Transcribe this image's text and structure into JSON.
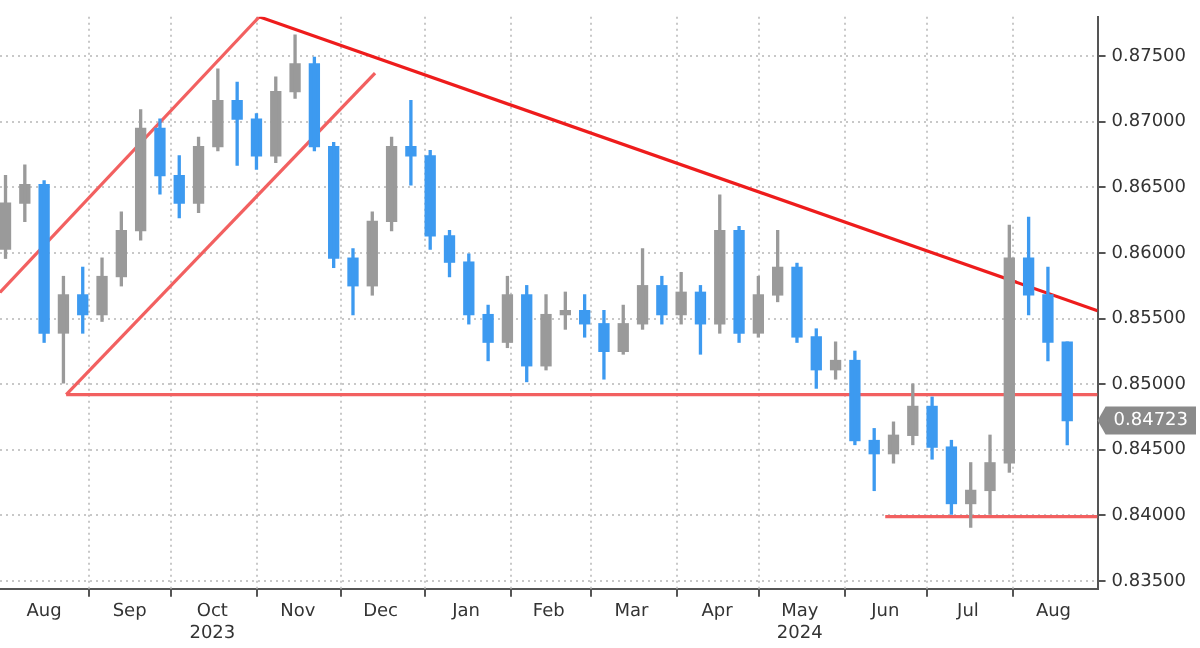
{
  "chart_data": {
    "type": "candlestick",
    "x": [
      "2023-08-02",
      "2023-08-09",
      "2023-08-16",
      "2023-08-23",
      "2023-08-30",
      "2023-09-06",
      "2023-09-13",
      "2023-09-20",
      "2023-09-27",
      "2023-10-04",
      "2023-10-11",
      "2023-10-18",
      "2023-10-25",
      "2023-11-01",
      "2023-11-08",
      "2023-11-15",
      "2023-11-22",
      "2023-11-29",
      "2023-12-06",
      "2023-12-13",
      "2023-12-20",
      "2023-12-27",
      "2024-01-03",
      "2024-01-10",
      "2024-01-17",
      "2024-01-24",
      "2024-01-31",
      "2024-02-07",
      "2024-02-14",
      "2024-02-21",
      "2024-02-28",
      "2024-03-06",
      "2024-03-13",
      "2024-03-20",
      "2024-03-27",
      "2024-04-03",
      "2024-04-10",
      "2024-04-17",
      "2024-04-24",
      "2024-05-01",
      "2024-05-08",
      "2024-05-15",
      "2024-05-22",
      "2024-05-29",
      "2024-06-05",
      "2024-06-12",
      "2024-06-19",
      "2024-06-26",
      "2024-07-03",
      "2024-07-10",
      "2024-07-17",
      "2024-07-24",
      "2024-07-31",
      "2024-08-07",
      "2024-08-14",
      "2024-08-21"
    ],
    "ohlc": [
      [
        0.8603,
        0.8659,
        0.8596,
        0.8638
      ],
      [
        0.8638,
        0.8667,
        0.8624,
        0.8652
      ],
      [
        0.8652,
        0.8655,
        0.8532,
        0.8539
      ],
      [
        0.8539,
        0.8582,
        0.8501,
        0.8568
      ],
      [
        0.8568,
        0.8589,
        0.8539,
        0.8553
      ],
      [
        0.8553,
        0.8596,
        0.8548,
        0.8582
      ],
      [
        0.8582,
        0.8631,
        0.8575,
        0.8617
      ],
      [
        0.8617,
        0.8709,
        0.861,
        0.8695
      ],
      [
        0.8695,
        0.8702,
        0.8645,
        0.8659
      ],
      [
        0.8659,
        0.8674,
        0.8627,
        0.8638
      ],
      [
        0.8638,
        0.8688,
        0.8631,
        0.8681
      ],
      [
        0.8681,
        0.874,
        0.8678,
        0.8716
      ],
      [
        0.8716,
        0.873,
        0.8667,
        0.8702
      ],
      [
        0.8702,
        0.8706,
        0.8664,
        0.8674
      ],
      [
        0.8674,
        0.8734,
        0.8669,
        0.8723
      ],
      [
        0.8723,
        0.8766,
        0.8718,
        0.8744
      ],
      [
        0.8744,
        0.8749,
        0.8678,
        0.8681
      ],
      [
        0.8681,
        0.8684,
        0.8589,
        0.8596
      ],
      [
        0.8596,
        0.8603,
        0.8553,
        0.8575
      ],
      [
        0.8575,
        0.8631,
        0.8568,
        0.8624
      ],
      [
        0.8624,
        0.8688,
        0.8617,
        0.8681
      ],
      [
        0.8681,
        0.8716,
        0.8652,
        0.8674
      ],
      [
        0.8674,
        0.8678,
        0.8603,
        0.8613
      ],
      [
        0.8613,
        0.8617,
        0.8582,
        0.8593
      ],
      [
        0.8593,
        0.8599,
        0.8546,
        0.8553
      ],
      [
        0.8553,
        0.856,
        0.8518,
        0.8532
      ],
      [
        0.8532,
        0.8582,
        0.8528,
        0.8568
      ],
      [
        0.8568,
        0.8575,
        0.8502,
        0.8514
      ],
      [
        0.8514,
        0.8568,
        0.8511,
        0.8553
      ],
      [
        0.8553,
        0.857,
        0.8542,
        0.8556
      ],
      [
        0.8556,
        0.8568,
        0.8536,
        0.8546
      ],
      [
        0.8546,
        0.8556,
        0.8504,
        0.8525
      ],
      [
        0.8525,
        0.856,
        0.8523,
        0.8546
      ],
      [
        0.8546,
        0.8603,
        0.8542,
        0.8575
      ],
      [
        0.8575,
        0.8582,
        0.8546,
        0.8553
      ],
      [
        0.8553,
        0.8585,
        0.8546,
        0.857
      ],
      [
        0.857,
        0.8575,
        0.8523,
        0.8546
      ],
      [
        0.8546,
        0.8644,
        0.8539,
        0.8617
      ],
      [
        0.8617,
        0.862,
        0.8532,
        0.8539
      ],
      [
        0.8539,
        0.8582,
        0.8536,
        0.8568
      ],
      [
        0.8568,
        0.8617,
        0.8563,
        0.8589
      ],
      [
        0.8589,
        0.8592,
        0.8532,
        0.8536
      ],
      [
        0.8536,
        0.8542,
        0.8497,
        0.8511
      ],
      [
        0.8511,
        0.8532,
        0.8504,
        0.8518
      ],
      [
        0.8518,
        0.8525,
        0.8454,
        0.8457
      ],
      [
        0.8457,
        0.8466,
        0.8419,
        0.8447
      ],
      [
        0.8447,
        0.8471,
        0.844,
        0.8461
      ],
      [
        0.8461,
        0.85,
        0.8454,
        0.8483
      ],
      [
        0.8483,
        0.849,
        0.8443,
        0.8452
      ],
      [
        0.8452,
        0.8457,
        0.8401,
        0.8409
      ],
      [
        0.8409,
        0.844,
        0.8391,
        0.8419
      ],
      [
        0.8419,
        0.8461,
        0.8401,
        0.844
      ],
      [
        0.844,
        0.8621,
        0.8433,
        0.8596
      ],
      [
        0.8596,
        0.8627,
        0.8553,
        0.8568
      ],
      [
        0.8568,
        0.8589,
        0.8518,
        0.8532
      ],
      [
        0.8532,
        0.8532,
        0.8454,
        0.84723
      ]
    ],
    "colors": [
      "#9a9a9a",
      "#9a9a9a",
      "#3d9af0",
      "#9a9a9a",
      "#3d9af0",
      "#9a9a9a",
      "#9a9a9a",
      "#9a9a9a",
      "#3d9af0",
      "#3d9af0",
      "#9a9a9a",
      "#9a9a9a",
      "#3d9af0",
      "#3d9af0",
      "#9a9a9a",
      "#9a9a9a",
      "#3d9af0",
      "#3d9af0",
      "#3d9af0",
      "#9a9a9a",
      "#9a9a9a",
      "#3d9af0",
      "#3d9af0",
      "#3d9af0",
      "#3d9af0",
      "#3d9af0",
      "#9a9a9a",
      "#3d9af0",
      "#9a9a9a",
      "#9a9a9a",
      "#3d9af0",
      "#3d9af0",
      "#9a9a9a",
      "#9a9a9a",
      "#3d9af0",
      "#9a9a9a",
      "#3d9af0",
      "#9a9a9a",
      "#3d9af0",
      "#9a9a9a",
      "#9a9a9a",
      "#3d9af0",
      "#3d9af0",
      "#9a9a9a",
      "#3d9af0",
      "#3d9af0",
      "#9a9a9a",
      "#9a9a9a",
      "#3d9af0",
      "#3d9af0",
      "#9a9a9a",
      "#9a9a9a",
      "#9a9a9a",
      "#3d9af0",
      "#3d9af0",
      "#3d9af0"
    ],
    "series": [
      {
        "type": "line",
        "color": "#ee1c1c",
        "x": [
          "2023-11-02",
          "2024-09-01"
        ],
        "values": [
          0.878,
          0.8556
        ]
      },
      {
        "type": "line",
        "color": "#f26060",
        "x": [
          "2023-07-31",
          "2023-11-02"
        ],
        "values": [
          0.857,
          0.878
        ]
      },
      {
        "type": "line",
        "color": "#f26060",
        "x": [
          "2023-08-24",
          "2023-12-14"
        ],
        "values": [
          0.8492,
          0.8737
        ]
      },
      {
        "type": "line",
        "color": "#f26060",
        "x": [
          "2023-08-24",
          "2024-09-01"
        ],
        "values": [
          0.8492,
          0.8492
        ]
      },
      {
        "type": "line",
        "color": "#f26060",
        "x": [
          "2024-06-16",
          "2024-09-01"
        ],
        "values": [
          0.8399,
          0.8399
        ]
      }
    ],
    "marker": "none",
    "xlim": [
      "2023-07-31",
      "2024-09-01"
    ],
    "xticks": [
      {
        "value": "2023-08-16",
        "label": "Aug"
      },
      {
        "value": "2023-09-01",
        "label": null
      },
      {
        "value": "2023-09-16",
        "label": "Sep"
      },
      {
        "value": "2023-10-01",
        "label": null
      },
      {
        "value": "2023-10-16",
        "label": "Oct\n2023"
      },
      {
        "value": "2023-11-01",
        "label": null
      },
      {
        "value": "2023-11-16",
        "label": "Nov"
      },
      {
        "value": "2023-12-01",
        "label": null
      },
      {
        "value": "2023-12-16",
        "label": "Dec"
      },
      {
        "value": "2024-01-01",
        "label": null
      },
      {
        "value": "2024-01-16",
        "label": "Jan"
      },
      {
        "value": "2024-02-01",
        "label": null
      },
      {
        "value": "2024-02-15",
        "label": "Feb"
      },
      {
        "value": "2024-03-01",
        "label": null
      },
      {
        "value": "2024-03-16",
        "label": "Mar"
      },
      {
        "value": "2024-04-01",
        "label": null
      },
      {
        "value": "2024-04-16",
        "label": "Apr"
      },
      {
        "value": "2024-05-01",
        "label": null
      },
      {
        "value": "2024-05-16",
        "label": "May\n2024"
      },
      {
        "value": "2024-06-01",
        "label": null
      },
      {
        "value": "2024-06-16",
        "label": "Jun"
      },
      {
        "value": "2024-07-01",
        "label": null
      },
      {
        "value": "2024-07-16",
        "label": "Jul"
      },
      {
        "value": "2024-08-01",
        "label": null
      },
      {
        "value": "2024-08-16",
        "label": "Aug"
      }
    ],
    "ylim": [
      0.8344,
      0.878
    ],
    "yticks": [
      {
        "value": 0.835,
        "label": "0.83500"
      },
      {
        "value": 0.84,
        "label": "0.84000"
      },
      {
        "value": 0.845,
        "label": "0.84500"
      },
      {
        "value": 0.85,
        "label": "0.85000"
      },
      {
        "value": 0.855,
        "label": "0.85500"
      },
      {
        "value": 0.86,
        "label": "0.86000"
      },
      {
        "value": 0.865,
        "label": "0.86500"
      },
      {
        "value": 0.87,
        "label": "0.87000"
      },
      {
        "value": 0.875,
        "label": "0.87500"
      }
    ],
    "grid": true,
    "annotations": [
      "0.84723"
    ]
  }
}
